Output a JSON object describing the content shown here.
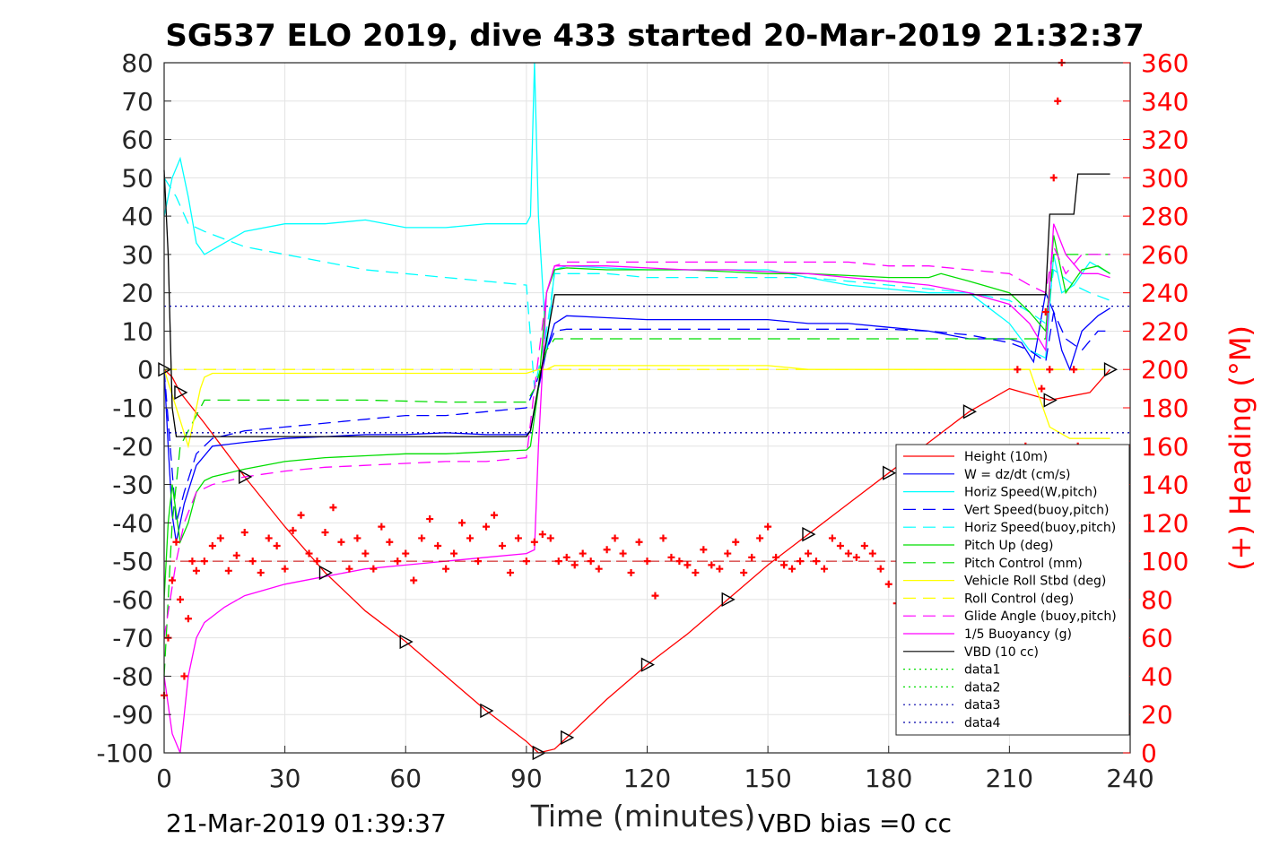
{
  "chart_data": {
    "type": "line",
    "title": "SG537 ELO 2019, dive 433 started 20-Mar-2019 21:32:37",
    "xlabel": "Time (minutes)",
    "ylabel": "",
    "ylabel_right": "(+) Heading (°M)",
    "xlim": [
      0,
      240
    ],
    "ylim": [
      -100,
      80
    ],
    "ylim_right": [
      0,
      360
    ],
    "xticks": [
      "0",
      "30",
      "60",
      "90",
      "120",
      "150",
      "180",
      "210",
      "240"
    ],
    "yticks": [
      "80",
      "70",
      "60",
      "50",
      "40",
      "30",
      "20",
      "10",
      "0",
      "-10",
      "-20",
      "-30",
      "-40",
      "-50",
      "-60",
      "-70",
      "-80",
      "-90",
      "-100"
    ],
    "yticks_right": [
      "360",
      "340",
      "320",
      "300",
      "280",
      "260",
      "240",
      "220",
      "200",
      "180",
      "160",
      "140",
      "120",
      "100",
      "80",
      "60",
      "40",
      "20",
      "0"
    ],
    "grid": true,
    "legend_position": "bottom-right",
    "footer_left": "21-Mar-2019 01:39:37",
    "footer_right": "VBD bias =0 cc",
    "series": [
      {
        "name": "Height (10m)",
        "color": "#ff0000",
        "style": "solid",
        "x": [
          0,
          2,
          4,
          10,
          20,
          30,
          40,
          50,
          60,
          70,
          80,
          90,
          93,
          97,
          100,
          110,
          120,
          130,
          140,
          150,
          160,
          170,
          180,
          190,
          200,
          210,
          220,
          230,
          235
        ],
        "y": [
          0,
          -2,
          -6,
          -14,
          -28,
          -41,
          -53,
          -63,
          -71,
          -80,
          -89,
          -97,
          -100,
          -99,
          -96,
          -86,
          -77,
          -69,
          -60,
          -51,
          -43,
          -35,
          -27,
          -19,
          -11,
          -5,
          -8,
          -6,
          0
        ]
      },
      {
        "name": "W = dz/dt (cm/s)",
        "color": "#0000ff",
        "style": "solid",
        "x": [
          0,
          1,
          2,
          3,
          5,
          8,
          12,
          20,
          30,
          40,
          50,
          60,
          70,
          80,
          90,
          91,
          93,
          95,
          97,
          100,
          110,
          120,
          130,
          140,
          150,
          160,
          170,
          180,
          190,
          200,
          210,
          213,
          216,
          219,
          221,
          223,
          225,
          228,
          232,
          235
        ],
        "y": [
          0,
          -20,
          -38,
          -45,
          -35,
          -25,
          -20,
          -19,
          -18,
          -17.5,
          -17,
          -17,
          -16.5,
          -17,
          -17,
          -16,
          -5,
          5,
          12,
          14,
          13.5,
          13,
          13,
          13,
          13,
          12,
          12,
          11,
          10,
          8,
          8,
          7,
          2,
          20,
          15,
          5,
          0,
          10,
          14,
          16
        ]
      },
      {
        "name": "Horiz Speed(W,pitch)",
        "color": "#00ffff",
        "style": "solid",
        "x": [
          0,
          2,
          4,
          6,
          8,
          10,
          15,
          20,
          30,
          40,
          50,
          60,
          70,
          80,
          90,
          91,
          92,
          93,
          95,
          97,
          100,
          110,
          120,
          130,
          140,
          150,
          160,
          170,
          180,
          190,
          200,
          205,
          210,
          215,
          219,
          221,
          223,
          226,
          230,
          235
        ],
        "y": [
          40,
          50,
          55,
          45,
          33,
          30,
          33,
          36,
          38,
          38,
          39,
          37,
          37,
          38,
          38,
          40,
          80,
          40,
          5,
          26,
          27,
          26.5,
          26,
          26,
          26,
          26,
          24,
          22,
          21,
          20,
          20,
          16,
          12,
          5,
          3,
          30,
          20,
          22,
          28,
          25
        ]
      },
      {
        "name": "Vert Speed(buoy,pitch)",
        "color": "#0000ff",
        "style": "dashed",
        "x": [
          0,
          3,
          5,
          8,
          12,
          20,
          30,
          40,
          50,
          60,
          70,
          80,
          90,
          92,
          95,
          97,
          100,
          110,
          120,
          130,
          140,
          150,
          160,
          170,
          180,
          190,
          200,
          210,
          215,
          219,
          221,
          224,
          228,
          232,
          235
        ],
        "y": [
          0,
          -40,
          -32,
          -22,
          -18,
          -16,
          -15,
          -14,
          -13,
          -12,
          -12,
          -11,
          -10,
          -5,
          5,
          10,
          10.5,
          10.5,
          10.5,
          10.5,
          10.5,
          10.5,
          10.5,
          10.5,
          10.5,
          10,
          9,
          7,
          5,
          2,
          15,
          8,
          5,
          10,
          10
        ]
      },
      {
        "name": "Horiz Speed(buoy,pitch)",
        "color": "#00ffff",
        "style": "dashed",
        "x": [
          0,
          3,
          6,
          10,
          20,
          30,
          40,
          50,
          60,
          70,
          80,
          90,
          92,
          95,
          97,
          100,
          110,
          120,
          130,
          140,
          150,
          160,
          170,
          180,
          190,
          200,
          210,
          215,
          219,
          221,
          226,
          230,
          235
        ],
        "y": [
          50,
          45,
          38,
          36,
          32,
          30,
          28,
          26,
          25,
          24,
          23,
          22,
          -5,
          10,
          25,
          25,
          25,
          24,
          24,
          24,
          24,
          24,
          23,
          22,
          21,
          20,
          18,
          15,
          12,
          26,
          22,
          20,
          18
        ]
      },
      {
        "name": "Pitch Up (deg)",
        "color": "#00dd00",
        "style": "solid",
        "x": [
          0,
          1,
          2,
          4,
          6,
          8,
          10,
          12,
          20,
          30,
          40,
          50,
          60,
          70,
          80,
          90,
          91,
          93,
          95,
          97,
          100,
          110,
          120,
          130,
          140,
          150,
          160,
          170,
          180,
          190,
          193,
          200,
          210,
          215,
          219,
          221,
          224,
          228,
          232,
          235
        ],
        "y": [
          -60,
          -40,
          -30,
          -45,
          -40,
          -32,
          -29,
          -28,
          -26,
          -24,
          -23,
          -22.5,
          -22,
          -22,
          -21.5,
          -21,
          -20,
          -5,
          20,
          26,
          26.5,
          26,
          26,
          26,
          25.5,
          25,
          25,
          24.5,
          24,
          24,
          25,
          23,
          20,
          15,
          10,
          35,
          20,
          26,
          27,
          25
        ]
      },
      {
        "name": "Pitch Control (mm)",
        "color": "#00dd00",
        "style": "dashed",
        "x": [
          0,
          2,
          4,
          8,
          10,
          30,
          50,
          70,
          90,
          92,
          95,
          97,
          100,
          150,
          190,
          200,
          210,
          219,
          221,
          230,
          235
        ],
        "y": [
          -80,
          -40,
          -20,
          -12,
          -8,
          -8,
          -8,
          -8.5,
          -8.5,
          -5,
          5,
          8,
          8,
          8,
          8,
          8,
          8,
          8,
          30,
          30,
          30
        ]
      },
      {
        "name": "Vehicle Roll Stbd (deg)",
        "color": "#ffff00",
        "style": "solid",
        "x": [
          0,
          3,
          6,
          9,
          10,
          12,
          14,
          20,
          30,
          40,
          50,
          60,
          70,
          80,
          90,
          93,
          95,
          97,
          100,
          110,
          120,
          130,
          140,
          150,
          160,
          170,
          180,
          190,
          200,
          210,
          215,
          220,
          225,
          230,
          235
        ],
        "y": [
          0,
          -10,
          -20,
          -5,
          -2,
          -1,
          -1,
          -1,
          -1,
          -1,
          -1,
          -1,
          -1,
          -1,
          -1,
          0,
          0,
          1,
          1,
          1,
          1,
          1,
          1,
          1,
          0,
          0,
          0,
          0,
          0,
          0,
          0,
          -15,
          -18,
          -18,
          -18
        ]
      },
      {
        "name": "Roll Control (deg)",
        "color": "#ffff00",
        "style": "dashed",
        "x": [
          0,
          10,
          20,
          30,
          40,
          50,
          60,
          70,
          80,
          90,
          100,
          110,
          120,
          130,
          140,
          150,
          160,
          170,
          180,
          190,
          200,
          210,
          220,
          230,
          235
        ],
        "y": [
          0,
          0,
          0,
          0,
          0,
          0,
          0,
          0,
          0,
          0,
          0,
          0,
          0,
          0,
          0,
          0,
          0,
          0,
          0,
          0,
          0,
          0,
          0,
          0,
          0
        ]
      },
      {
        "name": "Glide Angle (buoy,pitch)",
        "color": "#ff00ff",
        "style": "dashed",
        "x": [
          0,
          3,
          5,
          8,
          12,
          20,
          30,
          40,
          50,
          60,
          70,
          80,
          90,
          92,
          95,
          97,
          100,
          110,
          120,
          130,
          140,
          150,
          160,
          170,
          180,
          190,
          200,
          210,
          215,
          219,
          221,
          224,
          228,
          232,
          235
        ],
        "y": [
          -70,
          -50,
          -40,
          -32,
          -30,
          -28,
          -26.5,
          -25.5,
          -25,
          -24.5,
          -24,
          -24,
          -23,
          -5,
          20,
          27,
          28,
          28,
          28,
          28,
          28,
          28,
          28,
          28,
          27,
          27,
          26,
          25,
          22,
          20,
          32,
          25,
          30,
          30,
          30
        ]
      },
      {
        "name": "1/5 Buoyancy (g)",
        "color": "#ff00ff",
        "style": "solid",
        "x": [
          0,
          2,
          4,
          5,
          6,
          8,
          10,
          15,
          20,
          30,
          40,
          50,
          60,
          70,
          80,
          90,
          92,
          93,
          95,
          97,
          100,
          110,
          120,
          130,
          140,
          150,
          160,
          170,
          180,
          190,
          200,
          210,
          215,
          219,
          221,
          224,
          228,
          232,
          235
        ],
        "y": [
          -80,
          -95,
          -100,
          -90,
          -80,
          -70,
          -66,
          -62,
          -59,
          -56,
          -54,
          -52,
          -51,
          -50,
          -49,
          -48,
          -47,
          -20,
          20,
          27,
          27,
          27,
          26.5,
          26,
          26,
          25.5,
          25,
          24,
          23,
          22,
          20,
          17,
          12,
          5,
          38,
          30,
          25,
          25,
          24
        ]
      },
      {
        "name": "VBD (10 cc)",
        "color": "#000000",
        "style": "solid",
        "x": [
          0,
          1,
          2,
          3,
          90,
          91,
          97,
          98,
          219,
          220,
          226,
          227,
          234,
          235
        ],
        "y": [
          52,
          30,
          -10,
          -17.5,
          -17.5,
          -16,
          19.5,
          19.5,
          19.5,
          40.5,
          40.5,
          51,
          51,
          51
        ]
      },
      {
        "name": "data1",
        "color": "#00dd00",
        "style": "dotted",
        "x": [],
        "y": []
      },
      {
        "name": "data2",
        "color": "#00dd00",
        "style": "dotted",
        "x": [],
        "y": []
      },
      {
        "name": "data3",
        "color": "#0000aa",
        "style": "dotted",
        "x": [
          0,
          240
        ],
        "y": [
          16.5,
          16.5
        ]
      },
      {
        "name": "data4",
        "color": "#0000aa",
        "style": "dotted",
        "x": [
          0,
          240
        ],
        "y": [
          -16.5,
          -16.5
        ]
      }
    ],
    "heading_marker": {
      "color": "#ff0000",
      "marker": "+",
      "mean": 100,
      "x": [
        0,
        1,
        2,
        3,
        4,
        5,
        6,
        7,
        8,
        10,
        12,
        14,
        16,
        18,
        20,
        22,
        24,
        26,
        28,
        30,
        32,
        34,
        36,
        38,
        40,
        42,
        44,
        46,
        48,
        50,
        52,
        54,
        56,
        58,
        60,
        62,
        64,
        66,
        68,
        70,
        72,
        74,
        76,
        78,
        80,
        82,
        84,
        86,
        88,
        90,
        92,
        94,
        96,
        98,
        100,
        102,
        104,
        106,
        108,
        110,
        112,
        114,
        116,
        118,
        120,
        122,
        124,
        126,
        128,
        130,
        132,
        134,
        136,
        138,
        140,
        142,
        144,
        146,
        148,
        150,
        152,
        154,
        156,
        158,
        160,
        162,
        164,
        166,
        168,
        170,
        172,
        174,
        176,
        178,
        180,
        182,
        184,
        186,
        188,
        190,
        192,
        194,
        196,
        198,
        200,
        202,
        204,
        206,
        208,
        210,
        212,
        214,
        216,
        218,
        219,
        220,
        221,
        222,
        223,
        224,
        225,
        226,
        227,
        228,
        229,
        230,
        232,
        234,
        235
      ],
      "y": [
        30,
        60,
        90,
        110,
        80,
        40,
        70,
        100,
        95,
        100,
        108,
        112,
        95,
        103,
        115,
        100,
        94,
        112,
        108,
        96,
        116,
        124,
        104,
        100,
        115,
        128,
        110,
        96,
        112,
        104,
        96,
        118,
        110,
        100,
        104,
        90,
        112,
        122,
        108,
        96,
        104,
        120,
        112,
        100,
        118,
        124,
        108,
        94,
        112,
        100,
        110,
        114,
        112,
        100,
        102,
        98,
        104,
        100,
        96,
        106,
        112,
        104,
        94,
        110,
        100,
        82,
        112,
        102,
        100,
        98,
        94,
        106,
        98,
        96,
        104,
        110,
        94,
        102,
        112,
        118,
        102,
        98,
        96,
        100,
        104,
        100,
        96,
        112,
        108,
        104,
        102,
        108,
        104,
        96,
        88,
        78,
        102,
        112,
        104,
        92,
        100,
        96,
        100,
        110,
        104,
        88,
        78,
        100,
        112,
        110,
        200,
        160,
        90,
        190,
        230,
        200,
        300,
        340,
        360,
        100,
        20,
        200,
        160,
        140,
        110,
        80,
        66,
        60,
        62
      ]
    }
  }
}
